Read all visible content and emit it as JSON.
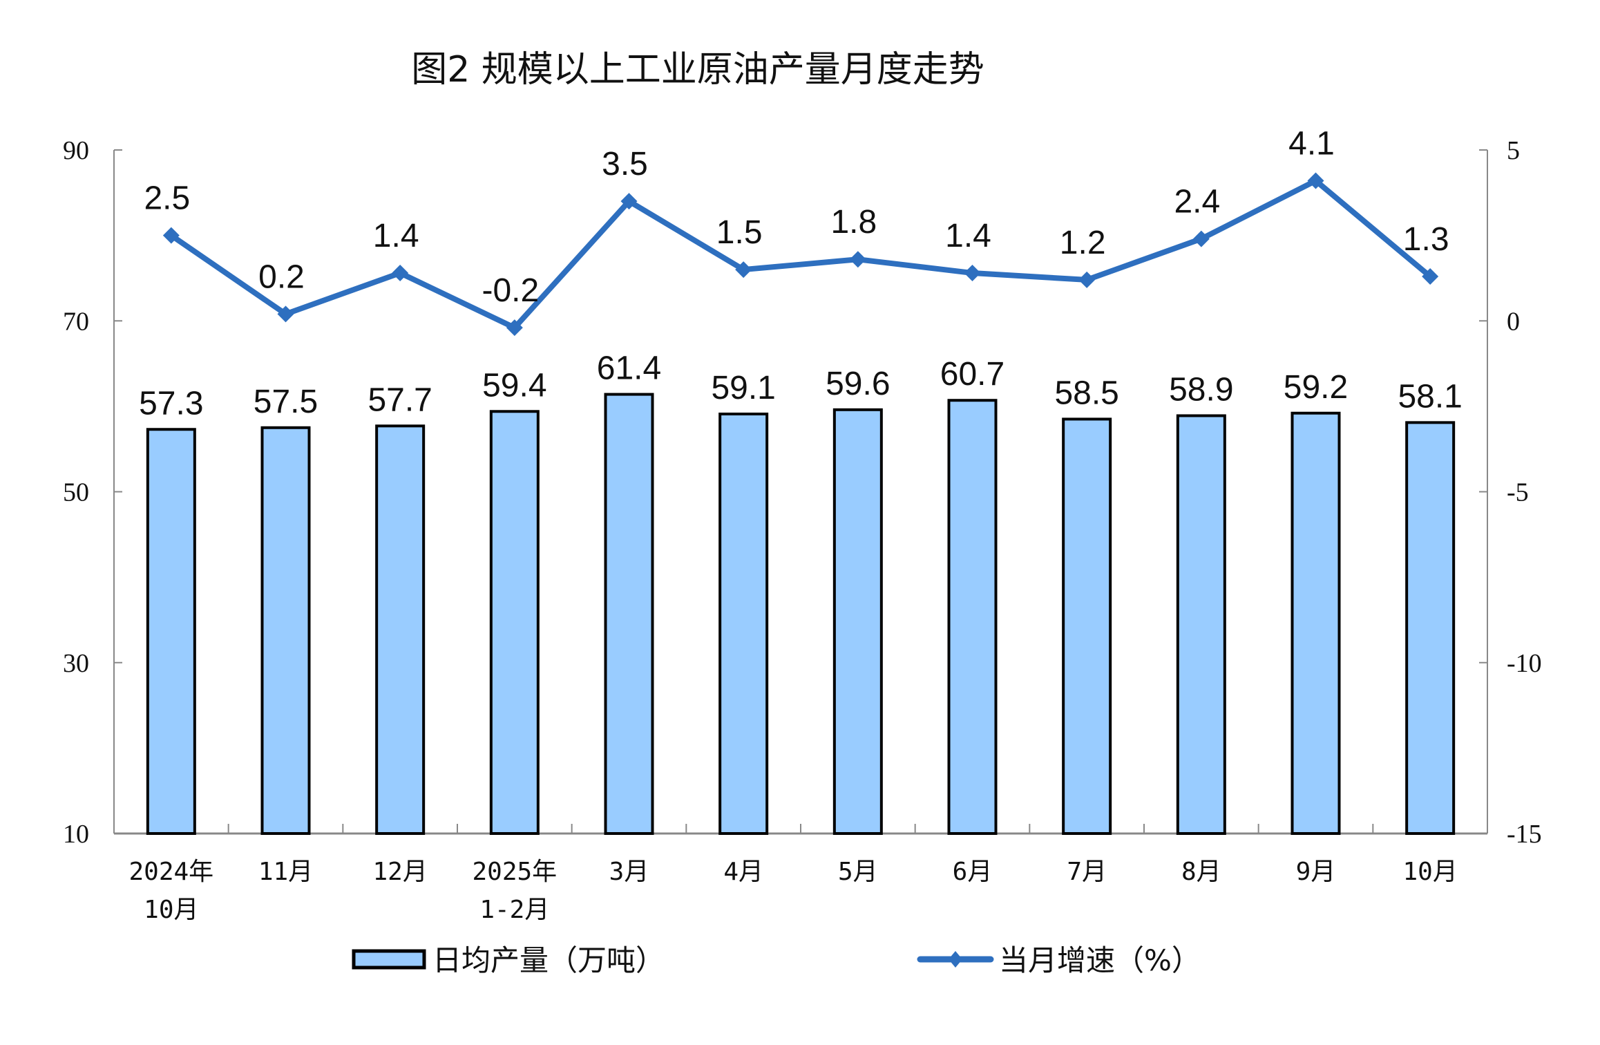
{
  "chart_data": {
    "type": "bar+line",
    "title": "图2  规模以上工业原油产量月度走势",
    "categories": [
      [
        "2024年",
        "10月"
      ],
      [
        "11月"
      ],
      [
        "12月"
      ],
      [
        "2025年",
        "1-2月"
      ],
      [
        "3月"
      ],
      [
        "4月"
      ],
      [
        "5月"
      ],
      [
        "6月"
      ],
      [
        "7月"
      ],
      [
        "8月"
      ],
      [
        "9月"
      ],
      [
        "10月"
      ]
    ],
    "series": [
      {
        "name": "日均产量（万吨）",
        "type": "bar",
        "axis": "left",
        "color": "#99CCFF",
        "values": [
          57.3,
          57.5,
          57.7,
          59.4,
          61.4,
          59.1,
          59.6,
          60.7,
          58.5,
          58.9,
          59.2,
          58.1
        ]
      },
      {
        "name": "当月增速（%）",
        "type": "line",
        "axis": "right",
        "color": "#2E6FBF",
        "values": [
          2.5,
          0.2,
          1.4,
          -0.2,
          3.5,
          1.5,
          1.8,
          1.4,
          1.2,
          2.4,
          4.1,
          1.3
        ]
      }
    ],
    "y_left": {
      "range": [
        10,
        90
      ],
      "ticks": [
        "90",
        "70",
        "50",
        "30",
        "10"
      ]
    },
    "y_right": {
      "range": [
        -15,
        5
      ],
      "ticks": [
        "5",
        "0",
        "-5",
        "-10",
        "-15"
      ]
    },
    "grid": false,
    "legend": "bottom"
  }
}
